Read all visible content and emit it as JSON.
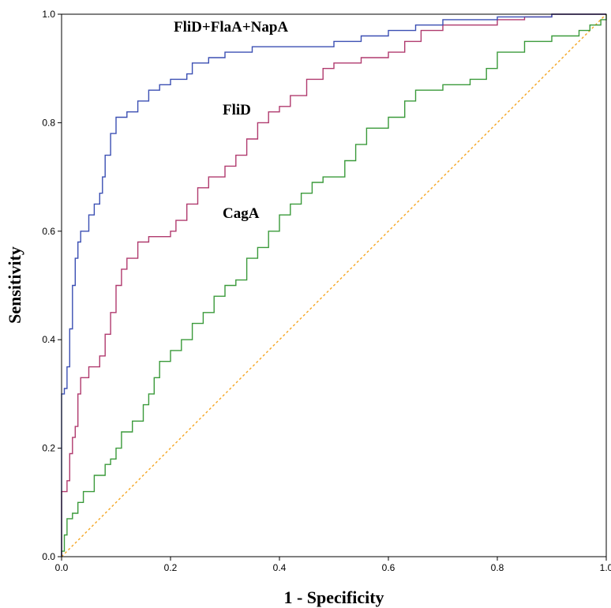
{
  "chart_data": {
    "type": "line",
    "title": "",
    "xlabel": "1 - Specificity",
    "ylabel": "Sensitivity",
    "xlim": [
      0,
      1
    ],
    "ylim": [
      0,
      1
    ],
    "x_ticks": [
      "0.0",
      "0.2",
      "0.4",
      "0.6",
      "0.8",
      "1.0"
    ],
    "y_ticks": [
      "0.0",
      "0.2",
      "0.4",
      "0.6",
      "0.8",
      "1.0"
    ],
    "grid": false,
    "legend": "none",
    "series": [
      {
        "name": "FliD+FlaA+NapA",
        "color": "#3b4fb3",
        "points": [
          [
            0,
            0
          ],
          [
            0,
            0.3
          ],
          [
            0.005,
            0.31
          ],
          [
            0.01,
            0.35
          ],
          [
            0.015,
            0.42
          ],
          [
            0.02,
            0.5
          ],
          [
            0.025,
            0.55
          ],
          [
            0.03,
            0.58
          ],
          [
            0.035,
            0.6
          ],
          [
            0.05,
            0.63
          ],
          [
            0.06,
            0.65
          ],
          [
            0.07,
            0.67
          ],
          [
            0.075,
            0.7
          ],
          [
            0.08,
            0.74
          ],
          [
            0.09,
            0.78
          ],
          [
            0.1,
            0.81
          ],
          [
            0.12,
            0.82
          ],
          [
            0.14,
            0.84
          ],
          [
            0.16,
            0.86
          ],
          [
            0.18,
            0.87
          ],
          [
            0.2,
            0.88
          ],
          [
            0.23,
            0.89
          ],
          [
            0.24,
            0.91
          ],
          [
            0.27,
            0.92
          ],
          [
            0.3,
            0.93
          ],
          [
            0.35,
            0.94
          ],
          [
            0.4,
            0.94
          ],
          [
            0.45,
            0.94
          ],
          [
            0.5,
            0.95
          ],
          [
            0.55,
            0.96
          ],
          [
            0.6,
            0.97
          ],
          [
            0.65,
            0.98
          ],
          [
            0.7,
            0.99
          ],
          [
            0.8,
            0.995
          ],
          [
            0.9,
            1.0
          ],
          [
            1.0,
            1.0
          ]
        ]
      },
      {
        "name": "FliD",
        "color": "#b03a6e",
        "points": [
          [
            0,
            0
          ],
          [
            0,
            0.12
          ],
          [
            0.01,
            0.14
          ],
          [
            0.015,
            0.19
          ],
          [
            0.02,
            0.22
          ],
          [
            0.025,
            0.24
          ],
          [
            0.03,
            0.3
          ],
          [
            0.035,
            0.33
          ],
          [
            0.05,
            0.35
          ],
          [
            0.07,
            0.37
          ],
          [
            0.08,
            0.41
          ],
          [
            0.09,
            0.45
          ],
          [
            0.1,
            0.5
          ],
          [
            0.11,
            0.53
          ],
          [
            0.12,
            0.55
          ],
          [
            0.14,
            0.58
          ],
          [
            0.16,
            0.59
          ],
          [
            0.2,
            0.6
          ],
          [
            0.21,
            0.62
          ],
          [
            0.23,
            0.65
          ],
          [
            0.25,
            0.68
          ],
          [
            0.27,
            0.7
          ],
          [
            0.3,
            0.72
          ],
          [
            0.32,
            0.74
          ],
          [
            0.34,
            0.77
          ],
          [
            0.36,
            0.8
          ],
          [
            0.38,
            0.82
          ],
          [
            0.4,
            0.83
          ],
          [
            0.42,
            0.85
          ],
          [
            0.45,
            0.88
          ],
          [
            0.48,
            0.9
          ],
          [
            0.5,
            0.91
          ],
          [
            0.55,
            0.92
          ],
          [
            0.6,
            0.93
          ],
          [
            0.63,
            0.95
          ],
          [
            0.66,
            0.97
          ],
          [
            0.7,
            0.98
          ],
          [
            0.8,
            0.99
          ],
          [
            0.85,
            0.995
          ],
          [
            0.9,
            1.0
          ],
          [
            1.0,
            1.0
          ]
        ]
      },
      {
        "name": "CagA",
        "color": "#3a9a3a",
        "points": [
          [
            0,
            0
          ],
          [
            0,
            0.01
          ],
          [
            0.005,
            0.04
          ],
          [
            0.01,
            0.07
          ],
          [
            0.02,
            0.08
          ],
          [
            0.03,
            0.1
          ],
          [
            0.04,
            0.12
          ],
          [
            0.06,
            0.15
          ],
          [
            0.08,
            0.17
          ],
          [
            0.09,
            0.18
          ],
          [
            0.1,
            0.2
          ],
          [
            0.11,
            0.23
          ],
          [
            0.13,
            0.25
          ],
          [
            0.15,
            0.28
          ],
          [
            0.16,
            0.3
          ],
          [
            0.17,
            0.33
          ],
          [
            0.18,
            0.36
          ],
          [
            0.2,
            0.38
          ],
          [
            0.22,
            0.4
          ],
          [
            0.24,
            0.43
          ],
          [
            0.26,
            0.45
          ],
          [
            0.28,
            0.48
          ],
          [
            0.3,
            0.5
          ],
          [
            0.32,
            0.51
          ],
          [
            0.34,
            0.55
          ],
          [
            0.36,
            0.57
          ],
          [
            0.38,
            0.6
          ],
          [
            0.4,
            0.63
          ],
          [
            0.42,
            0.65
          ],
          [
            0.44,
            0.67
          ],
          [
            0.46,
            0.69
          ],
          [
            0.48,
            0.7
          ],
          [
            0.52,
            0.73
          ],
          [
            0.54,
            0.76
          ],
          [
            0.56,
            0.79
          ],
          [
            0.6,
            0.81
          ],
          [
            0.63,
            0.84
          ],
          [
            0.65,
            0.86
          ],
          [
            0.7,
            0.87
          ],
          [
            0.75,
            0.88
          ],
          [
            0.78,
            0.9
          ],
          [
            0.8,
            0.93
          ],
          [
            0.85,
            0.95
          ],
          [
            0.9,
            0.96
          ],
          [
            0.95,
            0.97
          ],
          [
            0.97,
            0.98
          ],
          [
            0.99,
            0.99
          ],
          [
            1.0,
            1.0
          ]
        ]
      },
      {
        "name": "",
        "color": "#f5a623",
        "style": "dashed",
        "points": [
          [
            0,
            0
          ],
          [
            1,
            1
          ]
        ]
      }
    ]
  }
}
